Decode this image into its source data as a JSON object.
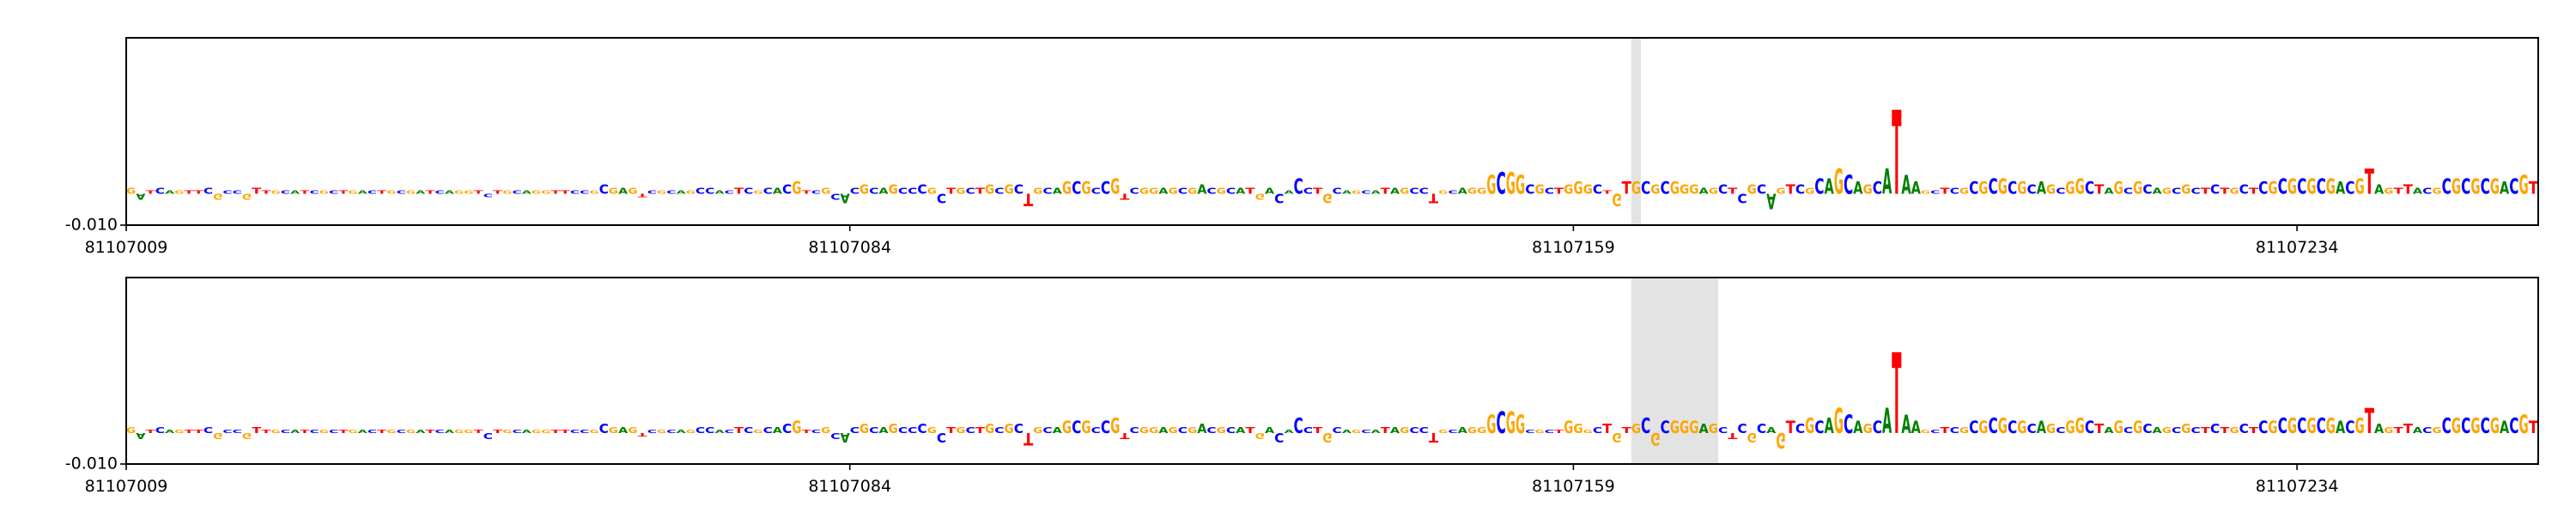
{
  "chart_data": [
    {
      "type": "logo",
      "sequence": "GATCAGTTCGCCGTTGCATCGCTGACTGCGATCAGGTCTGCAGGTTCCGCGAGTCGCAGCCACTCGCACGTCGCACGCAGCCCGCTGCTGCGCTGCAGCGCCGTCGGAGCGACGCATGACACCTGCAGCATAGCCTGCAGGGCGGCGCTGGGCTGTGCGCGGGAGCTCGCAGTCGCAGCAGCATAAGCTCGCGCGCGCAGCGGCTAGCGCAGCGCTCTGCTCGCGCGCGACGTAGTTACGCGCGCGACGT",
      "values": [
        0.002,
        -0.002,
        0.001,
        0.002,
        0.001,
        0.001,
        0.001,
        0.001,
        0.002,
        -0.002,
        0.001,
        0.001,
        -0.002,
        0.002,
        0.001,
        0.001,
        0.001,
        0.001,
        0.001,
        0.001,
        0.001,
        0.001,
        0.001,
        0.001,
        0.001,
        0.001,
        0.001,
        0.001,
        0.001,
        0.001,
        0.001,
        0.001,
        0.001,
        0.001,
        0.001,
        0.001,
        0.001,
        -0.001,
        0.001,
        0.001,
        0.001,
        0.001,
        0.001,
        0.001,
        0.001,
        0.001,
        0.001,
        0.001,
        0.001,
        0.003,
        0.002,
        0.002,
        0.002,
        -0.001,
        0.001,
        0.001,
        0.001,
        0.001,
        0.001,
        0.002,
        0.002,
        0.001,
        0.001,
        0.002,
        0.002,
        0.001,
        0.002,
        0.002,
        0.003,
        0.004,
        0.001,
        0.001,
        0.002,
        -0.002,
        -0.003,
        0.002,
        0.003,
        0.002,
        0.002,
        0.003,
        0.002,
        0.002,
        0.003,
        0.002,
        -0.003,
        0.002,
        0.002,
        0.002,
        0.002,
        0.003,
        0.002,
        0.003,
        0.003,
        -0.004,
        0.002,
        0.002,
        0.002,
        0.004,
        0.004,
        0.004,
        0.002,
        0.004,
        0.005,
        -0.002,
        0.002,
        0.002,
        0.002,
        0.002,
        0.002,
        0.002,
        0.002,
        0.003,
        0.002,
        0.002,
        0.002,
        0.002,
        0.002,
        -0.002,
        0.002,
        -0.003,
        0.001,
        0.005,
        0.002,
        0.002,
        -0.003,
        0.002,
        0.001,
        0.001,
        0.001,
        0.001,
        0.002,
        0.002,
        0.002,
        0.002,
        0.002,
        -0.003,
        0.001,
        0.001,
        0.002,
        0.002,
        0.002,
        0.006,
        0.007,
        0.007,
        0.006,
        0.003,
        0.003,
        0.002,
        0.002,
        0.003,
        0.004,
        0.003,
        0.003,
        0.001,
        -0.004,
        0.004,
        0.004,
        0.004,
        0.003,
        0.004,
        0.004,
        0.003,
        0.003,
        0.002,
        0.002,
        0.003,
        0.002,
        -0.003,
        0.003,
        0.003,
        -0.005,
        0.002,
        0.003,
        0.003,
        0.002,
        0.005,
        0.005,
        0.008,
        0.006,
        0.004,
        0.003,
        0.004,
        0.008,
        0.027,
        0.006,
        0.004,
        0.001,
        0.001,
        0.002,
        0.002,
        0.002,
        0.004,
        0.004,
        0.005,
        0.005,
        0.004,
        0.004,
        0.003,
        0.004,
        0.003,
        0.002,
        0.004,
        0.005,
        0.004,
        0.003,
        0.002,
        0.004,
        0.002,
        0.004,
        0.003,
        0.002,
        0.002,
        0.002,
        0.003,
        0.002,
        0.002,
        0.003,
        0.002,
        0.002,
        0.003,
        0.002,
        0.004,
        0.004,
        0.005,
        0.005,
        0.005,
        0.005,
        0.005,
        0.005,
        0.004,
        0.004,
        0.005,
        0.008,
        0.003,
        0.002,
        0.002,
        0.003,
        0.002,
        0.002,
        0.002,
        0.005,
        0.005,
        0.005,
        0.005,
        0.005,
        0.005,
        0.004,
        0.005,
        0.006,
        0.004
      ],
      "letter_colors": {
        "A": "#008000",
        "C": "#0000ff",
        "G": "#ffa500",
        "T": "#ff0000"
      },
      "highlight": [
        81107165,
        81107166
      ],
      "highlight_color": "#e3e3e3",
      "xlim": [
        81107009,
        81107259
      ],
      "xticks": [
        81107009,
        81107084,
        81107159,
        81107234
      ],
      "ylim": [
        -0.01,
        0.05
      ],
      "yticks": [
        {
          "value": -0.01,
          "label": "-0.010"
        }
      ]
    },
    {
      "type": "logo",
      "sequence": "GATCAGTTCGCCGTTGCATCGCTGACTGCGATCAGGTCTGCAGGTTCCGCGAGTCGCAGCCACTCGCACGTCGCACGCAGCCCGCTGCTGCGCTGCAGCGCCGTCGGAGCGACGCATGACACCTGCAGCATAGCCTGCAGGGCGGCGCTGGGCTGTGCGCGGGAGCTCGCAGTCGCAGCAGCATAAGCTCGCGCGCGCAGCGGCTAGCGCAGCGCTCTGCTCGCGCGCGACGTAGTTACGCGCGCGACGT",
      "values": [
        0.002,
        -0.002,
        0.001,
        0.002,
        0.001,
        0.001,
        0.001,
        0.001,
        0.002,
        -0.002,
        0.001,
        0.001,
        -0.002,
        0.002,
        0.001,
        0.001,
        0.001,
        0.001,
        0.001,
        0.001,
        0.001,
        0.001,
        0.001,
        0.001,
        0.001,
        0.001,
        0.001,
        0.001,
        0.001,
        0.001,
        0.001,
        0.001,
        0.001,
        0.001,
        0.001,
        0.001,
        0.001,
        -0.002,
        0.001,
        0.001,
        0.001,
        0.001,
        0.001,
        0.001,
        0.001,
        0.001,
        0.001,
        0.001,
        0.001,
        0.003,
        0.002,
        0.002,
        0.002,
        -0.001,
        0.001,
        0.001,
        0.001,
        0.001,
        0.001,
        0.002,
        0.002,
        0.001,
        0.001,
        0.002,
        0.002,
        0.001,
        0.002,
        0.002,
        0.003,
        0.004,
        0.001,
        0.001,
        0.002,
        -0.002,
        -0.003,
        0.002,
        0.003,
        0.002,
        0.002,
        0.003,
        0.002,
        0.002,
        0.003,
        0.002,
        -0.003,
        0.002,
        0.002,
        0.002,
        0.002,
        0.003,
        0.002,
        0.003,
        0.003,
        -0.004,
        0.002,
        0.002,
        0.002,
        0.004,
        0.004,
        0.004,
        0.002,
        0.004,
        0.005,
        -0.002,
        0.002,
        0.002,
        0.002,
        0.002,
        0.002,
        0.002,
        0.002,
        0.003,
        0.002,
        0.002,
        0.002,
        0.002,
        0.002,
        -0.002,
        0.002,
        -0.003,
        0.001,
        0.005,
        0.002,
        0.002,
        -0.003,
        0.002,
        0.001,
        0.001,
        0.001,
        0.001,
        0.002,
        0.002,
        0.002,
        0.002,
        0.002,
        -0.003,
        0.001,
        0.001,
        0.002,
        0.002,
        0.002,
        0.006,
        0.007,
        0.007,
        0.006,
        0.001,
        0.001,
        0.001,
        0.001,
        0.004,
        0.003,
        0.001,
        0.002,
        0.003,
        -0.003,
        0.002,
        0.003,
        0.005,
        -0.004,
        0.004,
        0.004,
        0.004,
        0.004,
        0.003,
        0.003,
        0.002,
        -0.002,
        0.003,
        -0.003,
        0.003,
        0.002,
        -0.005,
        0.004,
        0.003,
        0.005,
        0.004,
        0.005,
        0.008,
        0.006,
        0.004,
        0.003,
        0.004,
        0.008,
        0.026,
        0.006,
        0.004,
        0.001,
        0.001,
        0.002,
        0.002,
        0.002,
        0.004,
        0.004,
        0.005,
        0.005,
        0.004,
        0.004,
        0.003,
        0.004,
        0.003,
        0.002,
        0.004,
        0.005,
        0.004,
        0.003,
        0.002,
        0.004,
        0.002,
        0.004,
        0.003,
        0.002,
        0.002,
        0.002,
        0.003,
        0.002,
        0.002,
        0.003,
        0.002,
        0.002,
        0.003,
        0.002,
        0.004,
        0.004,
        0.005,
        0.005,
        0.005,
        0.005,
        0.005,
        0.005,
        0.004,
        0.004,
        0.005,
        0.008,
        0.003,
        0.002,
        0.002,
        0.003,
        0.002,
        0.002,
        0.002,
        0.005,
        0.005,
        0.005,
        0.005,
        0.005,
        0.005,
        0.004,
        0.005,
        0.006,
        0.004
      ],
      "letter_colors": {
        "A": "#008000",
        "C": "#0000ff",
        "G": "#ffa500",
        "T": "#ff0000"
      },
      "highlight": [
        81107165,
        81107174
      ],
      "highlight_color": "#e3e3e3",
      "xlim": [
        81107009,
        81107259
      ],
      "xticks": [
        81107009,
        81107084,
        81107159,
        81107234
      ],
      "ylim": [
        -0.01,
        0.05
      ],
      "yticks": [
        {
          "value": -0.01,
          "label": "-0.010"
        }
      ]
    }
  ]
}
